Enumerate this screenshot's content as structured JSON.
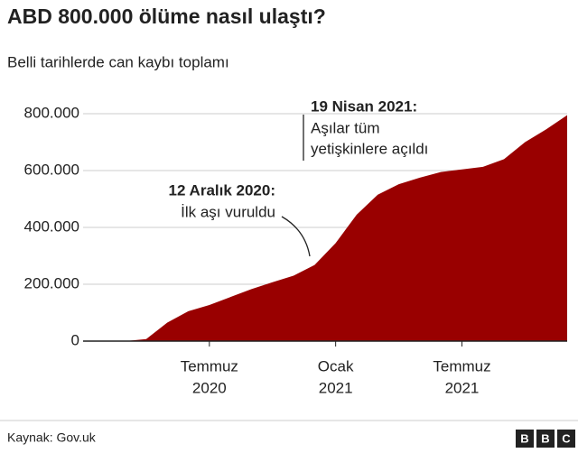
{
  "chart_data": {
    "type": "area",
    "title": "ABD 800.000 ölüme nasıl ulaştı?",
    "subtitle": "Belli tarihlerde can kaybı toplamı",
    "x": [
      "2020-01",
      "2020-02",
      "2020-03",
      "2020-04",
      "2020-05",
      "2020-06",
      "2020-07",
      "2020-08",
      "2020-09",
      "2020-10",
      "2020-11",
      "2020-12",
      "2021-01",
      "2021-02",
      "2021-03",
      "2021-04",
      "2021-05",
      "2021-06",
      "2021-07",
      "2021-08",
      "2021-09",
      "2021-10",
      "2021-11",
      "2021-12"
    ],
    "values": [
      0,
      0,
      0,
      7000,
      65000,
      105000,
      127000,
      155000,
      183000,
      207000,
      230000,
      268000,
      345000,
      445000,
      515000,
      552000,
      575000,
      595000,
      604000,
      613000,
      640000,
      700000,
      745000,
      795000
    ],
    "color": "#990000",
    "xlim": [
      "2020-01",
      "2021-12"
    ],
    "xticks": [
      {
        "value": "2020-07",
        "label": [
          "Temmuz",
          "2020"
        ]
      },
      {
        "value": "2021-01",
        "label": [
          "Ocak",
          "2021"
        ]
      },
      {
        "value": "2021-07",
        "label": [
          "Temmuz",
          "2021"
        ]
      }
    ],
    "ylim": [
      0,
      800000
    ],
    "yticks": [
      {
        "value": 0,
        "label": "0"
      },
      {
        "value": 200000,
        "label": "200.000"
      },
      {
        "value": 400000,
        "label": "400.000"
      },
      {
        "value": 600000,
        "label": "600.000"
      },
      {
        "value": 800000,
        "label": "800.000"
      }
    ],
    "grid": true,
    "annotations": [
      {
        "title": "12 Aralık 2020:",
        "lines": [
          "İlk aşı vuruldu"
        ]
      },
      {
        "title": "19 Nisan 2021:",
        "lines": [
          "Aşılar tüm",
          "yetişkinlere açıldı"
        ]
      }
    ],
    "source": "Kaynak: Gov.uk",
    "logo": [
      "B",
      "B",
      "C"
    ]
  }
}
